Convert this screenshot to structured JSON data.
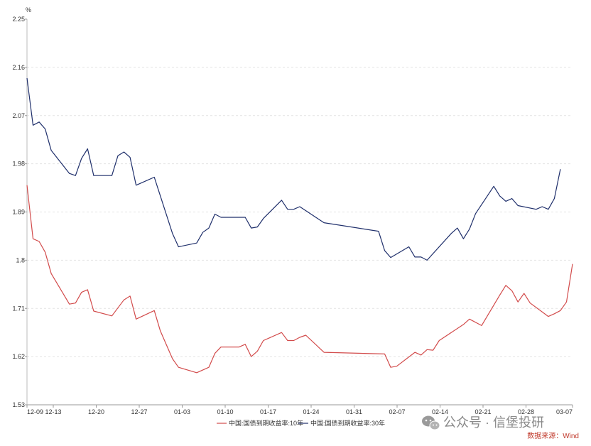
{
  "chart_data": {
    "type": "line",
    "unit": "%",
    "ylim": [
      1.53,
      2.25
    ],
    "yticks": [
      "2.25",
      "2.16",
      "2.07",
      "1.98",
      "1.89",
      "1.8",
      "1.71",
      "1.62",
      "1.53"
    ],
    "xticks": [
      "12-09",
      "12-13",
      "12-20",
      "12-27",
      "01-03",
      "01-10",
      "01-17",
      "01-24",
      "01-31",
      "02-07",
      "02-14",
      "02-21",
      "02-28",
      "03-07"
    ],
    "grid": true,
    "legend_position": "bottom",
    "series": [
      {
        "name": "中国:国债到期收益率:10年",
        "color": "#d24b4b",
        "values": [
          [
            0,
            1.94
          ],
          [
            1,
            1.84
          ],
          [
            2,
            1.835
          ],
          [
            3,
            1.815
          ],
          [
            4,
            1.775
          ],
          [
            7,
            1.718
          ],
          [
            8,
            1.72
          ],
          [
            9,
            1.74
          ],
          [
            10,
            1.745
          ],
          [
            11,
            1.705
          ],
          [
            14,
            1.696
          ],
          [
            16,
            1.726
          ],
          [
            17,
            1.733
          ],
          [
            18,
            1.69
          ],
          [
            21,
            1.706
          ],
          [
            22,
            1.668
          ],
          [
            24,
            1.616
          ],
          [
            25,
            1.6
          ],
          [
            28,
            1.59
          ],
          [
            30,
            1.6
          ],
          [
            31,
            1.626
          ],
          [
            32,
            1.638
          ],
          [
            35,
            1.638
          ],
          [
            36,
            1.643
          ],
          [
            37,
            1.62
          ],
          [
            38,
            1.63
          ],
          [
            39,
            1.65
          ],
          [
            42,
            1.665
          ],
          [
            43,
            1.65
          ],
          [
            44,
            1.65
          ],
          [
            45,
            1.656
          ],
          [
            46,
            1.66
          ],
          [
            49,
            1.628
          ],
          [
            59,
            1.625
          ],
          [
            60,
            1.6
          ],
          [
            61,
            1.602
          ],
          [
            64,
            1.628
          ],
          [
            65,
            1.623
          ],
          [
            66,
            1.633
          ],
          [
            67,
            1.632
          ],
          [
            68,
            1.65
          ],
          [
            72,
            1.68
          ],
          [
            73,
            1.69
          ],
          [
            75,
            1.678
          ],
          [
            78,
            1.735
          ],
          [
            79,
            1.753
          ],
          [
            80,
            1.743
          ],
          [
            81,
            1.722
          ],
          [
            82,
            1.738
          ],
          [
            83,
            1.72
          ],
          [
            86,
            1.695
          ],
          [
            87,
            1.7
          ],
          [
            88,
            1.706
          ],
          [
            89,
            1.722
          ],
          [
            90,
            1.793
          ]
        ]
      },
      {
        "name": "中国:国债到期收益率:30年",
        "color": "#1f2f6b",
        "values": [
          [
            0,
            2.14
          ],
          [
            1,
            2.052
          ],
          [
            2,
            2.058
          ],
          [
            3,
            2.045
          ],
          [
            4,
            2.005
          ],
          [
            7,
            1.962
          ],
          [
            8,
            1.958
          ],
          [
            9,
            1.99
          ],
          [
            10,
            2.008
          ],
          [
            11,
            1.958
          ],
          [
            14,
            1.958
          ],
          [
            15,
            1.995
          ],
          [
            16,
            2.002
          ],
          [
            17,
            1.992
          ],
          [
            18,
            1.94
          ],
          [
            21,
            1.955
          ],
          [
            24,
            1.85
          ],
          [
            25,
            1.825
          ],
          [
            28,
            1.832
          ],
          [
            29,
            1.852
          ],
          [
            30,
            1.86
          ],
          [
            31,
            1.886
          ],
          [
            32,
            1.88
          ],
          [
            36,
            1.88
          ],
          [
            37,
            1.86
          ],
          [
            38,
            1.862
          ],
          [
            39,
            1.878
          ],
          [
            42,
            1.912
          ],
          [
            43,
            1.895
          ],
          [
            44,
            1.895
          ],
          [
            45,
            1.9
          ],
          [
            49,
            1.87
          ],
          [
            58,
            1.854
          ],
          [
            59,
            1.818
          ],
          [
            60,
            1.805
          ],
          [
            63,
            1.825
          ],
          [
            64,
            1.806
          ],
          [
            65,
            1.806
          ],
          [
            66,
            1.8
          ],
          [
            70,
            1.85
          ],
          [
            71,
            1.86
          ],
          [
            72,
            1.84
          ],
          [
            73,
            1.858
          ],
          [
            74,
            1.887
          ],
          [
            77,
            1.938
          ],
          [
            78,
            1.92
          ],
          [
            79,
            1.91
          ],
          [
            80,
            1.915
          ],
          [
            81,
            1.902
          ],
          [
            84,
            1.895
          ],
          [
            85,
            1.9
          ],
          [
            86,
            1.895
          ],
          [
            87,
            1.915
          ],
          [
            88,
            1.97
          ]
        ]
      }
    ]
  },
  "footer": {
    "source_label": "数据来源：Wind",
    "source_color": "#c0392b",
    "watermark_text": "公众号 · 信堡投研",
    "watermark_icon": "wechat-icon"
  }
}
